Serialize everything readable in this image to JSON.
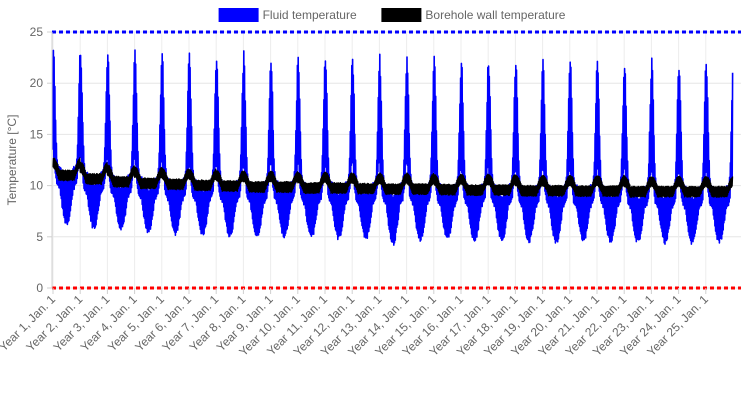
{
  "chart_data": {
    "type": "line",
    "title": "",
    "xlabel": "",
    "ylabel": "Temperature [°C]",
    "ylim": [
      0,
      25
    ],
    "yticks": [
      0,
      5,
      10,
      15,
      20,
      25
    ],
    "grid": true,
    "legend_position": "top",
    "x_tick_labels": [
      "Year 1, Jan. 1",
      "Year 2, Jan. 1",
      "Year 3, Jan. 1",
      "Year 4, Jan. 1",
      "Year 5, Jan. 1",
      "Year 6, Jan. 1",
      "Year 7, Jan. 1",
      "Year 8, Jan. 1",
      "Year 9, Jan. 1",
      "Year 10, Jan. 1",
      "Year 11, Jan. 1",
      "Year 12, Jan. 1",
      "Year 13, Jan. 1",
      "Year 14, Jan. 1",
      "Year 15, Jan. 1",
      "Year 16, Jan. 1",
      "Year 17, Jan. 1",
      "Year 18, Jan. 1",
      "Year 19, Jan. 1",
      "Year 20, Jan. 1",
      "Year 21, Jan. 1",
      "Year 22, Jan. 1",
      "Year 23, Jan. 1",
      "Year 24, Jan. 1",
      "Year 25, Jan. 1"
    ],
    "series": [
      {
        "name": "Fluid temperature",
        "color": "#0000ff",
        "x": [
          1,
          2,
          3,
          4,
          5,
          6,
          7,
          8,
          9,
          10,
          11,
          12,
          13,
          14,
          15,
          16,
          17,
          18,
          19,
          20,
          21,
          22,
          23,
          24,
          25
        ],
        "winter_peak": [
          24.5,
          24.3,
          24.2,
          24.1,
          24.0,
          23.9,
          23.8,
          23.8,
          23.7,
          23.7,
          23.6,
          23.6,
          23.5,
          23.5,
          23.4,
          23.4,
          23.4,
          23.3,
          23.3,
          23.3,
          23.2,
          23.2,
          23.2,
          23.1,
          23.1
        ],
        "summer_min": [
          5.8,
          5.4,
          5.2,
          5.0,
          4.9,
          4.8,
          4.7,
          4.7,
          4.6,
          4.5,
          4.4,
          4.4,
          3.8,
          4.3,
          4.3,
          4.2,
          4.2,
          4.1,
          4.0,
          4.1,
          4.0,
          4.0,
          4.0,
          3.9,
          4.0
        ],
        "baseline_high": [
          12.0,
          11.5,
          11.2,
          11.0,
          10.9,
          10.8,
          10.7,
          10.6,
          10.6,
          10.5,
          10.5,
          10.4,
          10.4,
          10.4,
          10.3,
          10.3,
          10.3,
          10.2,
          10.2,
          10.2,
          10.2,
          10.1,
          10.1,
          10.1,
          10.1
        ]
      },
      {
        "name": "Borehole wall temperature",
        "color": "#000000",
        "x": [
          1,
          2,
          3,
          4,
          5,
          6,
          7,
          8,
          9,
          10,
          11,
          12,
          13,
          14,
          15,
          16,
          17,
          18,
          19,
          20,
          21,
          22,
          23,
          24,
          25
        ],
        "winter_peak": [
          12.8,
          12.4,
          12.1,
          11.9,
          11.8,
          11.7,
          11.6,
          11.5,
          11.5,
          11.4,
          11.4,
          11.3,
          11.3,
          11.3,
          11.2,
          11.2,
          11.2,
          11.1,
          11.1,
          11.1,
          11.1,
          11.0,
          11.0,
          11.0,
          11.0
        ],
        "summer_min": [
          9.8,
          9.5,
          9.3,
          9.2,
          9.1,
          9.0,
          9.0,
          8.9,
          8.9,
          8.8,
          8.8,
          8.8,
          8.7,
          8.7,
          8.7,
          8.6,
          8.6,
          8.6,
          8.6,
          8.5,
          8.5,
          8.5,
          8.5,
          8.5,
          8.5
        ]
      }
    ],
    "reference_lines": [
      {
        "y": 25,
        "color": "#0000ff",
        "style": "dashed"
      },
      {
        "y": 0,
        "color": "#ff0000",
        "style": "dashed"
      }
    ]
  }
}
